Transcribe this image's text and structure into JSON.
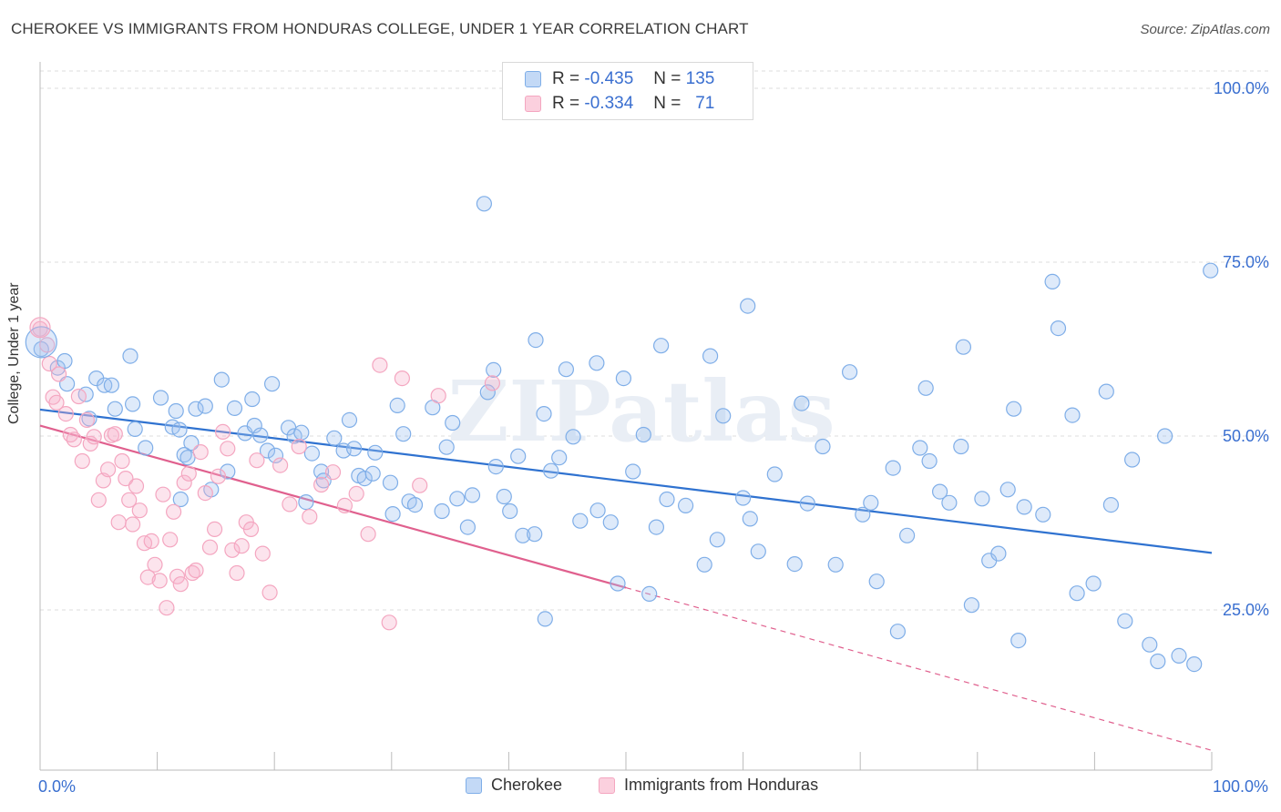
{
  "header": {
    "title": "CHEROKEE VS IMMIGRANTS FROM HONDURAS COLLEGE, UNDER 1 YEAR CORRELATION CHART",
    "source": "Source: ZipAtlas.com"
  },
  "legend": {
    "r_label": "R =",
    "n_label": "N =",
    "rows": [
      {
        "r": "-0.435",
        "n": "135"
      },
      {
        "r": "-0.334",
        "n": "71"
      }
    ]
  },
  "chart_data": {
    "type": "scatter",
    "title": "CHEROKEE VS IMMIGRANTS FROM HONDURAS COLLEGE, UNDER 1 YEAR CORRELATION CHART",
    "xlabel": "",
    "ylabel": "College, Under 1 year",
    "xlim": [
      0,
      100
    ],
    "ylim": [
      0,
      110
    ],
    "x_tick_labels": [
      "0.0%",
      "100.0%"
    ],
    "y_tick_labels": [
      {
        "value": 25,
        "label": "25.0%"
      },
      {
        "value": 50,
        "label": "50.0%"
      },
      {
        "value": 75,
        "label": "75.0%"
      },
      {
        "value": 100,
        "label": "100.0%"
      }
    ],
    "grid": "horizontal dashed",
    "watermark": "ZIPatlas",
    "series": [
      {
        "name": "Cherokee",
        "color": "#7faee8",
        "line_color": "#2f72d0",
        "trend": {
          "x": [
            0,
            100
          ],
          "y": [
            53.8,
            33.2
          ]
        },
        "points": [
          [
            0.1,
            62.5
          ],
          [
            1.5,
            59.8
          ],
          [
            2.3,
            57.5
          ],
          [
            2.1,
            60.8
          ],
          [
            4.8,
            58.3
          ],
          [
            3.9,
            56.0
          ],
          [
            5.5,
            57.3
          ],
          [
            6.1,
            57.3
          ],
          [
            7.7,
            61.5
          ],
          [
            4.2,
            52.5
          ],
          [
            6.4,
            53.9
          ],
          [
            7.9,
            54.6
          ],
          [
            9.0,
            48.3
          ],
          [
            8.1,
            51.0
          ],
          [
            10.3,
            55.5
          ],
          [
            11.3,
            51.3
          ],
          [
            11.6,
            53.6
          ],
          [
            11.9,
            50.9
          ],
          [
            12.3,
            47.3
          ],
          [
            12.6,
            46.9
          ],
          [
            12.9,
            49.0
          ],
          [
            13.3,
            53.9
          ],
          [
            14.1,
            54.3
          ],
          [
            15.5,
            58.1
          ],
          [
            16.6,
            54.0
          ],
          [
            17.5,
            50.4
          ],
          [
            18.1,
            55.3
          ],
          [
            18.3,
            51.5
          ],
          [
            18.8,
            50.1
          ],
          [
            19.4,
            47.9
          ],
          [
            20.1,
            47.2
          ],
          [
            21.2,
            51.2
          ],
          [
            21.7,
            50.0
          ],
          [
            22.3,
            50.5
          ],
          [
            23.2,
            47.5
          ],
          [
            22.7,
            40.5
          ],
          [
            24.0,
            44.9
          ],
          [
            24.2,
            43.6
          ],
          [
            25.1,
            49.7
          ],
          [
            25.9,
            47.9
          ],
          [
            26.8,
            48.2
          ],
          [
            27.2,
            44.3
          ],
          [
            27.7,
            43.9
          ],
          [
            28.4,
            44.6
          ],
          [
            28.6,
            47.6
          ],
          [
            29.9,
            43.3
          ],
          [
            30.1,
            38.8
          ],
          [
            31.5,
            40.6
          ],
          [
            32.0,
            40.1
          ],
          [
            33.5,
            54.1
          ],
          [
            34.3,
            39.2
          ],
          [
            34.7,
            48.4
          ],
          [
            35.6,
            41.0
          ],
          [
            36.5,
            36.9
          ],
          [
            36.9,
            41.5
          ],
          [
            38.2,
            56.3
          ],
          [
            38.7,
            59.5
          ],
          [
            38.9,
            45.6
          ],
          [
            40.1,
            39.2
          ],
          [
            40.8,
            47.1
          ],
          [
            41.2,
            35.7
          ],
          [
            42.2,
            35.9
          ],
          [
            43.1,
            23.7
          ],
          [
            43.6,
            45.0
          ],
          [
            44.3,
            46.9
          ],
          [
            44.9,
            59.6
          ],
          [
            46.1,
            37.8
          ],
          [
            47.6,
            39.3
          ],
          [
            48.7,
            37.6
          ],
          [
            49.3,
            28.8
          ],
          [
            50.6,
            44.9
          ],
          [
            51.5,
            50.2
          ],
          [
            52.0,
            27.3
          ],
          [
            52.6,
            36.9
          ],
          [
            53.5,
            40.9
          ],
          [
            55.1,
            40.0
          ],
          [
            56.7,
            31.5
          ],
          [
            57.8,
            35.1
          ],
          [
            60.0,
            41.1
          ],
          [
            60.6,
            38.1
          ],
          [
            61.3,
            33.4
          ],
          [
            62.7,
            44.5
          ],
          [
            64.4,
            31.6
          ],
          [
            65.5,
            40.3
          ],
          [
            66.8,
            48.5
          ],
          [
            67.9,
            31.5
          ],
          [
            70.2,
            38.7
          ],
          [
            70.9,
            40.4
          ],
          [
            71.4,
            29.1
          ],
          [
            72.8,
            45.4
          ],
          [
            74.0,
            35.7
          ],
          [
            75.1,
            48.3
          ],
          [
            75.9,
            46.4
          ],
          [
            76.8,
            42.0
          ],
          [
            77.6,
            40.4
          ],
          [
            78.6,
            48.5
          ],
          [
            79.5,
            25.7
          ],
          [
            80.4,
            41.0
          ],
          [
            81.0,
            32.1
          ],
          [
            82.6,
            42.3
          ],
          [
            83.5,
            20.6
          ],
          [
            84.0,
            39.8
          ],
          [
            85.6,
            38.7
          ],
          [
            86.9,
            65.5
          ],
          [
            88.1,
            53.0
          ],
          [
            89.9,
            28.8
          ],
          [
            91.4,
            40.1
          ],
          [
            92.6,
            23.4
          ],
          [
            93.2,
            46.6
          ],
          [
            95.4,
            17.6
          ],
          [
            97.2,
            18.4
          ],
          [
            99.9,
            73.8
          ],
          [
            37.9,
            83.4
          ],
          [
            42.3,
            63.8
          ],
          [
            47.5,
            60.5
          ],
          [
            57.2,
            61.5
          ],
          [
            60.4,
            68.7
          ],
          [
            69.1,
            59.2
          ],
          [
            75.6,
            56.9
          ],
          [
            78.8,
            62.8
          ],
          [
            83.1,
            53.9
          ],
          [
            86.4,
            72.2
          ],
          [
            91.0,
            56.4
          ],
          [
            96.0,
            50.0
          ],
          [
            73.2,
            21.9
          ],
          [
            81.8,
            33.1
          ],
          [
            88.5,
            27.4
          ],
          [
            94.7,
            20.0
          ],
          [
            98.5,
            17.2
          ],
          [
            65.0,
            54.7
          ],
          [
            58.3,
            52.9
          ],
          [
            53.0,
            63.0
          ],
          [
            49.8,
            58.3
          ],
          [
            45.5,
            49.9
          ],
          [
            43.0,
            53.2
          ],
          [
            39.6,
            41.3
          ],
          [
            35.2,
            51.9
          ],
          [
            31.0,
            50.3
          ],
          [
            30.5,
            54.4
          ],
          [
            26.4,
            52.3
          ],
          [
            19.8,
            57.5
          ],
          [
            16.0,
            44.9
          ],
          [
            14.6,
            42.3
          ],
          [
            12.0,
            40.9
          ]
        ]
      },
      {
        "name": "Immigrants from Honduras",
        "color": "#f4a6c0",
        "line_color": "#e0608e",
        "trend": {
          "x": [
            0,
            50
          ],
          "y": [
            51.5,
            28.2
          ]
        },
        "trend_dashed": {
          "x": [
            50,
            100
          ],
          "y": [
            28.2,
            4.8
          ]
        },
        "points": [
          [
            0.0,
            65.4
          ],
          [
            0.6,
            63.1
          ],
          [
            0.8,
            60.4
          ],
          [
            1.1,
            55.6
          ],
          [
            1.4,
            54.8
          ],
          [
            1.6,
            58.9
          ],
          [
            2.2,
            53.2
          ],
          [
            2.6,
            50.2
          ],
          [
            2.9,
            49.5
          ],
          [
            3.3,
            55.7
          ],
          [
            3.6,
            46.4
          ],
          [
            4.0,
            52.3
          ],
          [
            4.3,
            48.9
          ],
          [
            4.6,
            49.9
          ],
          [
            5.0,
            40.8
          ],
          [
            5.4,
            43.6
          ],
          [
            5.8,
            45.2
          ],
          [
            6.1,
            50.1
          ],
          [
            6.4,
            50.3
          ],
          [
            6.7,
            37.6
          ],
          [
            7.0,
            46.4
          ],
          [
            7.3,
            43.9
          ],
          [
            7.6,
            40.8
          ],
          [
            7.9,
            37.3
          ],
          [
            8.2,
            42.8
          ],
          [
            8.5,
            39.3
          ],
          [
            8.9,
            34.6
          ],
          [
            9.2,
            29.7
          ],
          [
            9.5,
            34.9
          ],
          [
            9.8,
            31.5
          ],
          [
            10.2,
            29.2
          ],
          [
            10.5,
            41.6
          ],
          [
            10.8,
            25.3
          ],
          [
            11.1,
            35.1
          ],
          [
            11.4,
            39.1
          ],
          [
            11.7,
            29.8
          ],
          [
            12.0,
            28.7
          ],
          [
            12.3,
            43.3
          ],
          [
            12.7,
            44.6
          ],
          [
            13.0,
            30.3
          ],
          [
            13.3,
            30.7
          ],
          [
            13.7,
            47.7
          ],
          [
            14.1,
            41.8
          ],
          [
            14.5,
            34.0
          ],
          [
            14.9,
            36.6
          ],
          [
            15.2,
            44.2
          ],
          [
            15.6,
            50.6
          ],
          [
            16.0,
            48.2
          ],
          [
            16.4,
            33.6
          ],
          [
            16.8,
            30.3
          ],
          [
            17.2,
            34.2
          ],
          [
            17.6,
            37.6
          ],
          [
            18.0,
            36.6
          ],
          [
            18.5,
            46.5
          ],
          [
            19.0,
            33.1
          ],
          [
            19.6,
            27.5
          ],
          [
            20.5,
            45.8
          ],
          [
            21.3,
            40.2
          ],
          [
            22.1,
            48.5
          ],
          [
            23.0,
            38.4
          ],
          [
            24.0,
            43.0
          ],
          [
            25.0,
            44.8
          ],
          [
            26.0,
            40.0
          ],
          [
            27.0,
            41.7
          ],
          [
            28.0,
            35.9
          ],
          [
            29.0,
            60.2
          ],
          [
            29.8,
            23.2
          ],
          [
            30.9,
            58.3
          ],
          [
            32.4,
            42.9
          ],
          [
            34.0,
            55.8
          ],
          [
            38.6,
            57.6
          ]
        ]
      }
    ]
  },
  "bottom_legend": {
    "items": [
      {
        "label": "Cherokee"
      },
      {
        "label": "Immigrants from Honduras"
      }
    ]
  }
}
